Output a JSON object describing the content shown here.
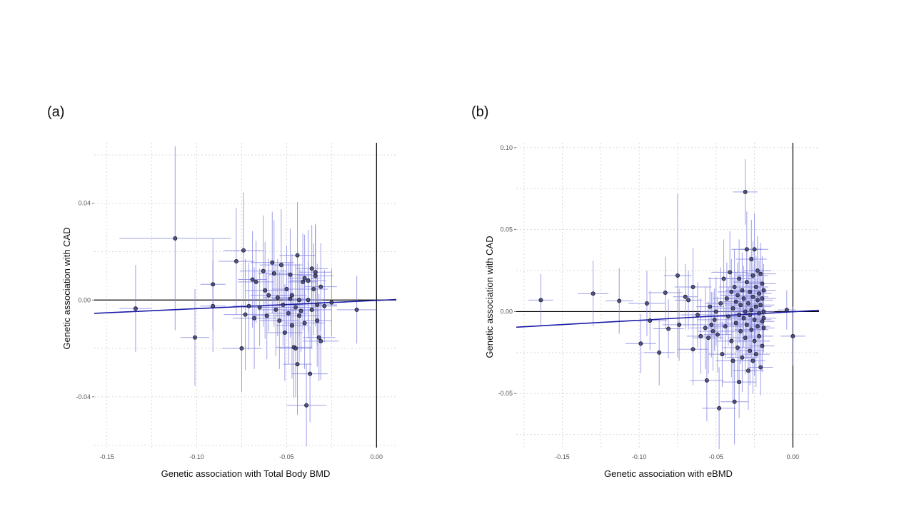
{
  "panels": [
    {
      "label": "(a)"
    },
    {
      "label": "(b)"
    }
  ],
  "colors": {
    "point_fill": "#3c3f70",
    "error_bar": "#7f7fe0",
    "fit_line": "#1a1aa6",
    "zero_line": "#000000",
    "grid": "#d9d9d9"
  },
  "chart_data": [
    {
      "type": "scatter",
      "title": "",
      "xlabel": "Genetic association with Total Body BMD",
      "ylabel": "Genetic association with CAD",
      "xlim": [
        -0.157,
        0.011
      ],
      "ylim": [
        -0.061,
        0.065
      ],
      "xticks": [
        -0.15,
        -0.1,
        -0.05,
        0.0
      ],
      "xtick_labels": [
        "-0.15",
        "-0.10",
        "-0.05",
        "0.00"
      ],
      "yticks": [
        -0.04,
        0.0,
        0.04
      ],
      "ytick_labels": [
        "-0.04",
        "0.00",
        "0.04"
      ],
      "grid": true,
      "fit_line": {
        "x": [
          -0.157,
          0.011
        ],
        "y": [
          -0.0055,
          0.0002
        ]
      },
      "points": [
        {
          "x": -0.134,
          "y": -0.0035,
          "xerr": 0.009,
          "yerr": 0.018
        },
        {
          "x": -0.112,
          "y": 0.0255,
          "xerr": 0.031,
          "yerr": 0.038
        },
        {
          "x": -0.101,
          "y": -0.0155,
          "xerr": 0.008,
          "yerr": 0.02
        },
        {
          "x": -0.091,
          "y": 0.0065,
          "xerr": 0.007,
          "yerr": 0.019
        },
        {
          "x": -0.091,
          "y": -0.0025,
          "xerr": 0.007,
          "yerr": 0.019
        },
        {
          "x": -0.078,
          "y": 0.016,
          "xerr": 0.01,
          "yerr": 0.022
        },
        {
          "x": -0.075,
          "y": -0.02,
          "xerr": 0.011,
          "yerr": 0.018
        },
        {
          "x": -0.074,
          "y": 0.0205,
          "xerr": 0.011,
          "yerr": 0.024
        },
        {
          "x": -0.073,
          "y": -0.006,
          "xerr": 0.012,
          "yerr": 0.023
        },
        {
          "x": -0.071,
          "y": -0.0025,
          "xerr": 0.009,
          "yerr": 0.018
        },
        {
          "x": -0.069,
          "y": 0.0085,
          "xerr": 0.008,
          "yerr": 0.02
        },
        {
          "x": -0.068,
          "y": -0.0075,
          "xerr": 0.012,
          "yerr": 0.021
        },
        {
          "x": -0.067,
          "y": 0.0075,
          "xerr": 0.01,
          "yerr": 0.017
        },
        {
          "x": -0.065,
          "y": -0.003,
          "xerr": 0.009,
          "yerr": 0.016
        },
        {
          "x": -0.063,
          "y": 0.012,
          "xerr": 0.013,
          "yerr": 0.023
        },
        {
          "x": -0.062,
          "y": 0.004,
          "xerr": 0.011,
          "yerr": 0.02
        },
        {
          "x": -0.061,
          "y": -0.0065,
          "xerr": 0.008,
          "yerr": 0.018
        },
        {
          "x": -0.06,
          "y": 0.002,
          "xerr": 0.01,
          "yerr": 0.015
        },
        {
          "x": -0.058,
          "y": 0.0155,
          "xerr": 0.012,
          "yerr": 0.021
        },
        {
          "x": -0.057,
          "y": 0.011,
          "xerr": 0.009,
          "yerr": 0.022
        },
        {
          "x": -0.056,
          "y": -0.004,
          "xerr": 0.01,
          "yerr": 0.019
        },
        {
          "x": -0.055,
          "y": 0.001,
          "xerr": 0.008,
          "yerr": 0.016
        },
        {
          "x": -0.054,
          "y": -0.0085,
          "xerr": 0.011,
          "yerr": 0.02
        },
        {
          "x": -0.053,
          "y": 0.0145,
          "xerr": 0.012,
          "yerr": 0.023
        },
        {
          "x": -0.052,
          "y": -0.002,
          "xerr": 0.009,
          "yerr": 0.017
        },
        {
          "x": -0.051,
          "y": -0.0135,
          "xerr": 0.01,
          "yerr": 0.02
        },
        {
          "x": -0.05,
          "y": 0.0045,
          "xerr": 0.008,
          "yerr": 0.018
        },
        {
          "x": -0.049,
          "y": -0.0055,
          "xerr": 0.011,
          "yerr": 0.021
        },
        {
          "x": -0.048,
          "y": 0.0005,
          "xerr": 0.01,
          "yerr": 0.016
        },
        {
          "x": -0.048,
          "y": 0.0105,
          "xerr": 0.012,
          "yerr": 0.019
        },
        {
          "x": -0.047,
          "y": -0.0105,
          "xerr": 0.009,
          "yerr": 0.022
        },
        {
          "x": -0.047,
          "y": 0.002,
          "xerr": 0.008,
          "yerr": 0.017
        },
        {
          "x": -0.046,
          "y": -0.0195,
          "xerr": 0.01,
          "yerr": 0.021
        },
        {
          "x": -0.045,
          "y": -0.003,
          "xerr": 0.011,
          "yerr": 0.018
        },
        {
          "x": -0.045,
          "y": -0.02,
          "xerr": 0.009,
          "yerr": 0.02
        },
        {
          "x": -0.044,
          "y": 0.0185,
          "xerr": 0.01,
          "yerr": 0.022
        },
        {
          "x": -0.044,
          "y": -0.0265,
          "xerr": 0.008,
          "yerr": 0.021
        },
        {
          "x": -0.043,
          "y": -0.0065,
          "xerr": 0.011,
          "yerr": 0.019
        },
        {
          "x": -0.043,
          "y": 0.0,
          "xerr": 0.009,
          "yerr": 0.015
        },
        {
          "x": -0.042,
          "y": -0.0045,
          "xerr": 0.01,
          "yerr": 0.017
        },
        {
          "x": -0.041,
          "y": 0.0075,
          "xerr": 0.008,
          "yerr": 0.02
        },
        {
          "x": -0.04,
          "y": -0.0095,
          "xerr": 0.011,
          "yerr": 0.019
        },
        {
          "x": -0.04,
          "y": 0.009,
          "xerr": 0.009,
          "yerr": 0.018
        },
        {
          "x": -0.039,
          "y": -0.0435,
          "xerr": 0.011,
          "yerr": 0.017
        },
        {
          "x": -0.038,
          "y": 0.008,
          "xerr": 0.01,
          "yerr": 0.021
        },
        {
          "x": -0.038,
          "y": 0.0,
          "xerr": 0.008,
          "yerr": 0.016
        },
        {
          "x": -0.037,
          "y": -0.0305,
          "xerr": 0.01,
          "yerr": 0.02
        },
        {
          "x": -0.036,
          "y": 0.013,
          "xerr": 0.009,
          "yerr": 0.018
        },
        {
          "x": -0.036,
          "y": -0.004,
          "xerr": 0.011,
          "yerr": 0.016
        },
        {
          "x": -0.035,
          "y": 0.0045,
          "xerr": 0.008,
          "yerr": 0.019
        },
        {
          "x": -0.034,
          "y": 0.01,
          "xerr": 0.01,
          "yerr": 0.021
        },
        {
          "x": -0.034,
          "y": 0.0115,
          "xerr": 0.009,
          "yerr": 0.02
        },
        {
          "x": -0.033,
          "y": -0.002,
          "xerr": 0.011,
          "yerr": 0.017
        },
        {
          "x": -0.033,
          "y": -0.0085,
          "xerr": 0.008,
          "yerr": 0.019
        },
        {
          "x": -0.032,
          "y": -0.0155,
          "xerr": 0.009,
          "yerr": 0.018
        },
        {
          "x": -0.031,
          "y": -0.017,
          "xerr": 0.01,
          "yerr": 0.016
        },
        {
          "x": -0.031,
          "y": 0.0055,
          "xerr": 0.009,
          "yerr": 0.018
        },
        {
          "x": -0.029,
          "y": -0.0025,
          "xerr": 0.007,
          "yerr": 0.015
        },
        {
          "x": -0.025,
          "y": -0.001,
          "xerr": 0.008,
          "yerr": 0.014
        },
        {
          "x": -0.011,
          "y": -0.004,
          "xerr": 0.011,
          "yerr": 0.014
        }
      ]
    },
    {
      "type": "scatter",
      "title": "",
      "xlabel": "Genetic association with eBMD",
      "ylabel": "Genetic association with CAD",
      "xlim": [
        -0.18,
        0.017
      ],
      "ylim": [
        -0.083,
        0.103
      ],
      "xticks": [
        -0.15,
        -0.1,
        -0.05,
        0.0
      ],
      "xtick_labels": [
        "-0.15",
        "-0.10",
        "-0.05",
        "0.00"
      ],
      "yticks": [
        -0.05,
        0.0,
        0.05,
        0.1
      ],
      "ytick_labels": [
        "-0.05",
        "0.00",
        "0.05",
        "0.10"
      ],
      "grid": true,
      "fit_line": {
        "x": [
          -0.18,
          0.017
        ],
        "y": [
          -0.0095,
          0.0008
        ]
      },
      "points": [
        {
          "x": -0.164,
          "y": 0.007,
          "xerr": 0.008,
          "yerr": 0.016
        },
        {
          "x": -0.13,
          "y": 0.011,
          "xerr": 0.01,
          "yerr": 0.02
        },
        {
          "x": -0.113,
          "y": 0.0065,
          "xerr": 0.009,
          "yerr": 0.02
        },
        {
          "x": -0.099,
          "y": -0.0195,
          "xerr": 0.01,
          "yerr": 0.018
        },
        {
          "x": -0.095,
          "y": 0.005,
          "xerr": 0.012,
          "yerr": 0.02
        },
        {
          "x": -0.093,
          "y": -0.0055,
          "xerr": 0.011,
          "yerr": 0.018
        },
        {
          "x": -0.087,
          "y": -0.025,
          "xerr": 0.01,
          "yerr": 0.02
        },
        {
          "x": -0.083,
          "y": 0.0115,
          "xerr": 0.011,
          "yerr": 0.022
        },
        {
          "x": -0.081,
          "y": -0.0105,
          "xerr": 0.01,
          "yerr": 0.018
        },
        {
          "x": -0.075,
          "y": 0.022,
          "xerr": 0.009,
          "yerr": 0.05
        },
        {
          "x": -0.074,
          "y": -0.008,
          "xerr": 0.011,
          "yerr": 0.022
        },
        {
          "x": -0.07,
          "y": 0.009,
          "xerr": 0.008,
          "yerr": 0.02
        },
        {
          "x": -0.068,
          "y": 0.007,
          "xerr": 0.009,
          "yerr": 0.018
        },
        {
          "x": -0.065,
          "y": -0.023,
          "xerr": 0.01,
          "yerr": 0.022
        },
        {
          "x": -0.065,
          "y": 0.015,
          "xerr": 0.012,
          "yerr": 0.024
        },
        {
          "x": -0.062,
          "y": -0.002,
          "xerr": 0.011,
          "yerr": 0.02
        },
        {
          "x": -0.06,
          "y": -0.015,
          "xerr": 0.009,
          "yerr": 0.023
        },
        {
          "x": -0.057,
          "y": -0.01,
          "xerr": 0.01,
          "yerr": 0.025
        },
        {
          "x": -0.056,
          "y": -0.042,
          "xerr": 0.011,
          "yerr": 0.025
        },
        {
          "x": -0.055,
          "y": -0.016,
          "xerr": 0.01,
          "yerr": 0.022
        },
        {
          "x": -0.054,
          "y": 0.003,
          "xerr": 0.009,
          "yerr": 0.018
        },
        {
          "x": -0.053,
          "y": -0.008,
          "xerr": 0.012,
          "yerr": 0.02
        },
        {
          "x": -0.052,
          "y": -0.012,
          "xerr": 0.01,
          "yerr": 0.024
        },
        {
          "x": -0.051,
          "y": -0.005,
          "xerr": 0.011,
          "yerr": 0.019
        },
        {
          "x": -0.05,
          "y": 0.0,
          "xerr": 0.01,
          "yerr": 0.021
        },
        {
          "x": -0.049,
          "y": -0.014,
          "xerr": 0.009,
          "yerr": 0.023
        },
        {
          "x": -0.048,
          "y": -0.059,
          "xerr": 0.011,
          "yerr": 0.025
        },
        {
          "x": -0.047,
          "y": 0.005,
          "xerr": 0.01,
          "yerr": 0.022
        },
        {
          "x": -0.046,
          "y": -0.026,
          "xerr": 0.009,
          "yerr": 0.02
        },
        {
          "x": -0.045,
          "y": 0.02,
          "xerr": 0.01,
          "yerr": 0.024
        },
        {
          "x": -0.044,
          "y": -0.009,
          "xerr": 0.011,
          "yerr": 0.02
        },
        {
          "x": -0.043,
          "y": 0.008,
          "xerr": 0.009,
          "yerr": 0.022
        },
        {
          "x": -0.042,
          "y": -0.003,
          "xerr": 0.01,
          "yerr": 0.018
        },
        {
          "x": -0.041,
          "y": 0.024,
          "xerr": 0.012,
          "yerr": 0.025
        },
        {
          "x": -0.04,
          "y": -0.018,
          "xerr": 0.01,
          "yerr": 0.022
        },
        {
          "x": -0.04,
          "y": 0.012,
          "xerr": 0.009,
          "yerr": 0.02
        },
        {
          "x": -0.039,
          "y": -0.03,
          "xerr": 0.011,
          "yerr": 0.024
        },
        {
          "x": -0.039,
          "y": 0.002,
          "xerr": 0.01,
          "yerr": 0.019
        },
        {
          "x": -0.038,
          "y": -0.055,
          "xerr": 0.009,
          "yerr": 0.026
        },
        {
          "x": -0.038,
          "y": 0.015,
          "xerr": 0.01,
          "yerr": 0.023
        },
        {
          "x": -0.037,
          "y": -0.007,
          "xerr": 0.011,
          "yerr": 0.021
        },
        {
          "x": -0.037,
          "y": 0.006,
          "xerr": 0.009,
          "yerr": 0.018
        },
        {
          "x": -0.036,
          "y": -0.022,
          "xerr": 0.01,
          "yerr": 0.022
        },
        {
          "x": -0.036,
          "y": 0.01,
          "xerr": 0.011,
          "yerr": 0.02
        },
        {
          "x": -0.035,
          "y": -0.002,
          "xerr": 0.009,
          "yerr": 0.017
        },
        {
          "x": -0.035,
          "y": 0.02,
          "xerr": 0.01,
          "yerr": 0.024
        },
        {
          "x": -0.035,
          "y": -0.043,
          "xerr": 0.011,
          "yerr": 0.022
        },
        {
          "x": -0.034,
          "y": -0.012,
          "xerr": 0.009,
          "yerr": 0.02
        },
        {
          "x": -0.034,
          "y": 0.004,
          "xerr": 0.01,
          "yerr": 0.019
        },
        {
          "x": -0.033,
          "y": 0.013,
          "xerr": 0.011,
          "yerr": 0.023
        },
        {
          "x": -0.033,
          "y": -0.028,
          "xerr": 0.01,
          "yerr": 0.021
        },
        {
          "x": -0.032,
          "y": -0.004,
          "xerr": 0.009,
          "yerr": 0.018
        },
        {
          "x": -0.032,
          "y": 0.008,
          "xerr": 0.01,
          "yerr": 0.02
        },
        {
          "x": -0.031,
          "y": 0.073,
          "xerr": 0.008,
          "yerr": 0.02
        },
        {
          "x": -0.031,
          "y": -0.016,
          "xerr": 0.011,
          "yerr": 0.022
        },
        {
          "x": -0.031,
          "y": 0.0,
          "xerr": 0.009,
          "yerr": 0.017
        },
        {
          "x": -0.03,
          "y": 0.038,
          "xerr": 0.01,
          "yerr": 0.023
        },
        {
          "x": -0.03,
          "y": -0.008,
          "xerr": 0.011,
          "yerr": 0.021
        },
        {
          "x": -0.03,
          "y": 0.018,
          "xerr": 0.009,
          "yerr": 0.019
        },
        {
          "x": -0.029,
          "y": -0.036,
          "xerr": 0.01,
          "yerr": 0.024
        },
        {
          "x": -0.029,
          "y": 0.005,
          "xerr": 0.008,
          "yerr": 0.018
        },
        {
          "x": -0.028,
          "y": -0.002,
          "xerr": 0.01,
          "yerr": 0.02
        },
        {
          "x": -0.028,
          "y": 0.012,
          "xerr": 0.011,
          "yerr": 0.022
        },
        {
          "x": -0.028,
          "y": -0.024,
          "xerr": 0.009,
          "yerr": 0.021
        },
        {
          "x": -0.027,
          "y": 0.032,
          "xerr": 0.01,
          "yerr": 0.024
        },
        {
          "x": -0.027,
          "y": -0.011,
          "xerr": 0.011,
          "yerr": 0.019
        },
        {
          "x": -0.027,
          "y": 0.001,
          "xerr": 0.009,
          "yerr": 0.017
        },
        {
          "x": -0.026,
          "y": 0.022,
          "xerr": 0.01,
          "yerr": 0.021
        },
        {
          "x": -0.026,
          "y": -0.03,
          "xerr": 0.008,
          "yerr": 0.02
        },
        {
          "x": -0.026,
          "y": 0.009,
          "xerr": 0.01,
          "yerr": 0.018
        },
        {
          "x": -0.025,
          "y": -0.005,
          "xerr": 0.011,
          "yerr": 0.02
        },
        {
          "x": -0.025,
          "y": 0.038,
          "xerr": 0.009,
          "yerr": 0.022
        },
        {
          "x": -0.025,
          "y": -0.018,
          "xerr": 0.01,
          "yerr": 0.021
        },
        {
          "x": -0.024,
          "y": 0.015,
          "xerr": 0.008,
          "yerr": 0.019
        },
        {
          "x": -0.024,
          "y": 0.003,
          "xerr": 0.01,
          "yerr": 0.017
        },
        {
          "x": -0.024,
          "y": -0.026,
          "xerr": 0.009,
          "yerr": 0.02
        },
        {
          "x": -0.023,
          "y": 0.007,
          "xerr": 0.01,
          "yerr": 0.018
        },
        {
          "x": -0.023,
          "y": -0.009,
          "xerr": 0.008,
          "yerr": 0.019
        },
        {
          "x": -0.023,
          "y": 0.025,
          "xerr": 0.009,
          "yerr": 0.021
        },
        {
          "x": -0.022,
          "y": -0.001,
          "xerr": 0.01,
          "yerr": 0.016
        },
        {
          "x": -0.022,
          "y": 0.011,
          "xerr": 0.008,
          "yerr": 0.02
        },
        {
          "x": -0.022,
          "y": -0.015,
          "xerr": 0.009,
          "yerr": 0.018
        },
        {
          "x": -0.021,
          "y": 0.023,
          "xerr": 0.01,
          "yerr": 0.019
        },
        {
          "x": -0.021,
          "y": -0.034,
          "xerr": 0.008,
          "yerr": 0.017
        },
        {
          "x": -0.021,
          "y": 0.004,
          "xerr": 0.009,
          "yerr": 0.016
        },
        {
          "x": -0.02,
          "y": -0.006,
          "xerr": 0.008,
          "yerr": 0.015
        },
        {
          "x": -0.02,
          "y": 0.017,
          "xerr": 0.009,
          "yerr": 0.017
        },
        {
          "x": -0.02,
          "y": -0.021,
          "xerr": 0.008,
          "yerr": 0.016
        },
        {
          "x": -0.02,
          "y": 0.008,
          "xerr": 0.009,
          "yerr": 0.018
        },
        {
          "x": -0.019,
          "y": 0.0,
          "xerr": 0.007,
          "yerr": 0.015
        },
        {
          "x": -0.019,
          "y": 0.013,
          "xerr": 0.008,
          "yerr": 0.016
        },
        {
          "x": -0.019,
          "y": -0.01,
          "xerr": 0.007,
          "yerr": 0.015
        },
        {
          "x": -0.019,
          "y": -0.004,
          "xerr": 0.008,
          "yerr": 0.016
        },
        {
          "x": -0.004,
          "y": 0.001,
          "xerr": 0.006,
          "yerr": 0.012
        },
        {
          "x": 0.0,
          "y": -0.015,
          "xerr": 0.008,
          "yerr": 0.018
        }
      ]
    }
  ]
}
